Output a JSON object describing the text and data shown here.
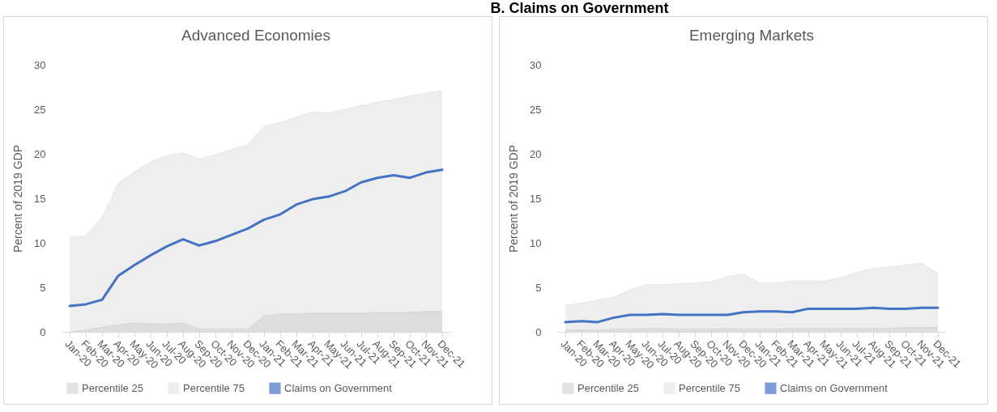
{
  "chart_data": [
    {
      "type": "area",
      "title": "Advanced Economies",
      "ylabel": "Percent of 2019 GDP",
      "annotations": [
        "B. Claims on Government"
      ],
      "categories": [
        "Jan-20",
        "Feb-20",
        "Mar-20",
        "Apr-20",
        "May-20",
        "Jun-20",
        "Jul-20",
        "Aug-20",
        "Sep-20",
        "Oct-20",
        "Nov-20",
        "Dec-20",
        "Jan-21",
        "Feb-21",
        "Mar-21",
        "Apr-21",
        "May-21",
        "Jun-21",
        "Jul-21",
        "Aug-21",
        "Sep-21",
        "Oct-21",
        "Nov-21",
        "Dec-21"
      ],
      "series": [
        {
          "name": "Percentile 25",
          "color": "#d6d6d6",
          "values": [
            0,
            0.2,
            0.5,
            0.8,
            1.0,
            0.9,
            0.9,
            1.0,
            0.3,
            0.3,
            0.3,
            0.3,
            1.8,
            2.0,
            2.0,
            2.1,
            2.1,
            2.1,
            2.1,
            2.2,
            2.2,
            2.2,
            2.3,
            2.3
          ]
        },
        {
          "name": "Percentile 75",
          "color": "#e7e7e7",
          "values": [
            10.6,
            10.8,
            12.9,
            16.7,
            18.0,
            19.1,
            19.8,
            20.1,
            19.4,
            19.9,
            20.5,
            21.0,
            23.1,
            23.5,
            24.1,
            24.7,
            24.6,
            25.0,
            25.4,
            25.8,
            26.1,
            26.5,
            26.8,
            27.1
          ]
        },
        {
          "name": "Claims on Government",
          "type": "line",
          "color": "#4472c4",
          "values": [
            2.9,
            3.1,
            3.6,
            6.3,
            7.5,
            8.6,
            9.6,
            10.4,
            9.7,
            10.2,
            10.9,
            11.6,
            12.6,
            13.2,
            14.3,
            14.9,
            15.2,
            15.8,
            16.8,
            17.3,
            17.6,
            17.3,
            17.9,
            18.2
          ]
        }
      ],
      "ylim": [
        0,
        30
      ],
      "yticks": [
        0,
        5,
        10,
        15,
        20,
        25,
        30
      ],
      "legend": "bottom"
    },
    {
      "type": "area",
      "title": "Emerging Markets",
      "ylabel": "Percent of 2019 GDP",
      "categories": [
        "Jan-20",
        "Feb-20",
        "Mar-20",
        "Apr-20",
        "May-20",
        "Jun-20",
        "Jul-20",
        "Aug-20",
        "Sep-20",
        "Oct-20",
        "Nov-20",
        "Dec-20",
        "Jan-21",
        "Feb-21",
        "Mar-21",
        "Apr-21",
        "May-21",
        "Jun-21",
        "Jul-21",
        "Aug-21",
        "Sep-21",
        "Oct-21",
        "Nov-21",
        "Dec-21"
      ],
      "series": [
        {
          "name": "Percentile 25",
          "color": "#d6d6d6",
          "values": [
            0.2,
            0.2,
            0.2,
            0.3,
            0.3,
            0.4,
            0.4,
            0.3,
            0.3,
            0.3,
            0.4,
            0.3,
            0.3,
            0.3,
            0.4,
            0.4,
            0.4,
            0.4,
            0.4,
            0.4,
            0.4,
            0.5,
            0.5,
            0.5
          ]
        },
        {
          "name": "Percentile 75",
          "color": "#e7e7e7",
          "values": [
            3.0,
            3.2,
            3.6,
            3.9,
            4.7,
            5.3,
            5.3,
            5.4,
            5.5,
            5.6,
            6.2,
            6.5,
            5.5,
            5.5,
            5.7,
            5.7,
            5.7,
            6.1,
            6.7,
            7.1,
            7.3,
            7.5,
            7.7,
            6.6
          ]
        },
        {
          "name": "Claims on Government",
          "type": "line",
          "color": "#4472c4",
          "values": [
            1.1,
            1.2,
            1.1,
            1.6,
            1.9,
            1.9,
            2.0,
            1.9,
            1.9,
            1.9,
            1.9,
            2.2,
            2.3,
            2.3,
            2.2,
            2.6,
            2.6,
            2.6,
            2.6,
            2.7,
            2.6,
            2.6,
            2.7,
            2.7
          ]
        }
      ],
      "ylim": [
        0,
        30
      ],
      "yticks": [
        0,
        5,
        10,
        15,
        20,
        25,
        30
      ],
      "legend": "bottom"
    }
  ]
}
